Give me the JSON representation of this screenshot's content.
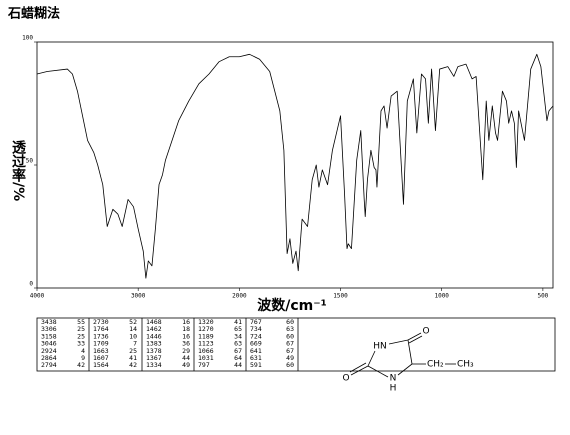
{
  "title": "石蜡糊法",
  "chart_data": {
    "type": "line",
    "x_label": "波数/cm⁻¹",
    "y_label": "透过率/%",
    "color": "#000000",
    "x": [
      4000,
      3900,
      3700,
      3650,
      3600,
      3500,
      3438,
      3400,
      3350,
      3306,
      3250,
      3200,
      3158,
      3100,
      3046,
      3000,
      2950,
      2924,
      2900,
      2864,
      2830,
      2794,
      2760,
      2730,
      2600,
      2500,
      2400,
      2300,
      2200,
      2100,
      2000,
      1950,
      1900,
      1850,
      1800,
      1780,
      1764,
      1750,
      1736,
      1720,
      1709,
      1690,
      1663,
      1640,
      1620,
      1607,
      1590,
      1564,
      1540,
      1500,
      1480,
      1468,
      1462,
      1446,
      1420,
      1400,
      1383,
      1378,
      1367,
      1350,
      1334,
      1325,
      1320,
      1300,
      1285,
      1270,
      1250,
      1220,
      1189,
      1170,
      1140,
      1123,
      1100,
      1080,
      1066,
      1050,
      1031,
      1010,
      970,
      940,
      920,
      880,
      850,
      830,
      797,
      780,
      767,
      750,
      734,
      724,
      700,
      680,
      669,
      655,
      641,
      631,
      620,
      591,
      560,
      530,
      510,
      480,
      470,
      450
    ],
    "values": [
      87,
      88,
      89,
      87,
      80,
      60,
      55,
      50,
      42,
      25,
      32,
      30,
      25,
      36,
      33,
      24,
      15,
      4,
      11,
      9,
      24,
      42,
      46,
      52,
      68,
      76,
      83,
      87,
      92,
      94,
      94,
      95,
      93,
      88,
      72,
      56,
      14,
      20,
      10,
      15,
      7,
      28,
      25,
      44,
      50,
      41,
      48,
      42,
      56,
      70,
      38,
      16,
      18,
      16,
      52,
      64,
      36,
      29,
      44,
      56,
      49,
      48,
      41,
      72,
      74,
      65,
      78,
      80,
      34,
      76,
      85,
      63,
      87,
      85,
      67,
      89,
      64,
      89,
      90,
      86,
      90,
      91,
      85,
      86,
      44,
      76,
      60,
      74,
      63,
      60,
      80,
      76,
      67,
      72,
      67,
      49,
      72,
      60,
      89,
      95,
      90,
      68,
      72,
      74
    ],
    "xlim": [
      4000,
      450
    ],
    "xticks": [
      4000,
      3000,
      2000,
      1500,
      1000,
      500
    ],
    "ylim": [
      0,
      100
    ],
    "yticks": [
      0,
      50,
      100
    ]
  },
  "peak_table": [
    [
      3438,
      55
    ],
    [
      3306,
      25
    ],
    [
      3158,
      25
    ],
    [
      3046,
      33
    ],
    [
      2924,
      4
    ],
    [
      2864,
      9
    ],
    [
      2794,
      42
    ],
    [
      2730,
      52
    ],
    [
      1764,
      14
    ],
    [
      1736,
      10
    ],
    [
      1709,
      7
    ],
    [
      1663,
      25
    ],
    [
      1607,
      41
    ],
    [
      1564,
      42
    ],
    [
      1468,
      16
    ],
    [
      1462,
      18
    ],
    [
      1446,
      16
    ],
    [
      1383,
      36
    ],
    [
      1378,
      29
    ],
    [
      1367,
      44
    ],
    [
      1334,
      49
    ],
    [
      1320,
      41
    ],
    [
      1270,
      65
    ],
    [
      1189,
      34
    ],
    [
      1123,
      63
    ],
    [
      1066,
      67
    ],
    [
      1031,
      64
    ],
    [
      797,
      44
    ],
    [
      767,
      60
    ],
    [
      734,
      63
    ],
    [
      724,
      60
    ],
    [
      669,
      67
    ],
    [
      641,
      67
    ],
    [
      631,
      49
    ],
    [
      591,
      60
    ]
  ],
  "structure": {
    "labels": [
      "O",
      "HN",
      "O",
      "N",
      "H",
      "CH₂",
      "CH₃"
    ]
  }
}
